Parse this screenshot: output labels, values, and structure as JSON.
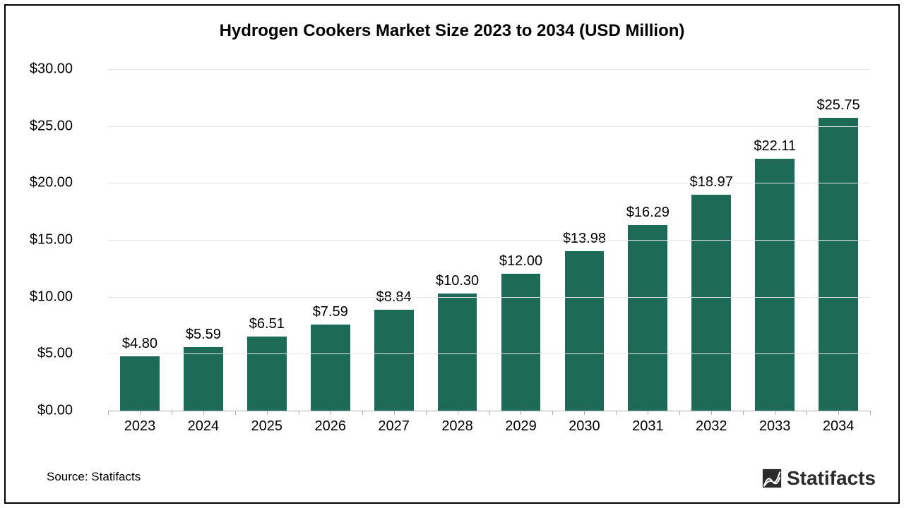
{
  "chart": {
    "type": "bar",
    "title": "Hydrogen Cookers Market Size 2023 to 2034 (USD Million)",
    "title_fontsize": 24,
    "title_fontweight": "bold",
    "background_color": "#ffffff",
    "border_color": "#000000",
    "bar_color": "#1d6b57",
    "grid_color": "#e6e6e6",
    "axis_color": "#b0b0b0",
    "text_color": "#000000",
    "label_fontsize": 20,
    "tick_fontsize": 20,
    "bar_width_pct": 62,
    "ylim": [
      0,
      30
    ],
    "ytick_step": 5,
    "y_ticks": [
      "$0.00",
      "$5.00",
      "$10.00",
      "$15.00",
      "$20.00",
      "$25.00",
      "$30.00"
    ],
    "categories": [
      "2023",
      "2024",
      "2025",
      "2026",
      "2027",
      "2028",
      "2029",
      "2030",
      "2031",
      "2032",
      "2033",
      "2034"
    ],
    "values": [
      4.8,
      5.59,
      6.51,
      7.59,
      8.84,
      10.3,
      12.0,
      13.98,
      16.29,
      18.97,
      22.11,
      25.75
    ],
    "value_labels": [
      "$4.80",
      "$5.59",
      "$6.51",
      "$7.59",
      "$8.84",
      "$10.30",
      "$12.00",
      "$13.98",
      "$16.29",
      "$18.97",
      "$22.11",
      "$25.75"
    ]
  },
  "source": {
    "text": "Source: Statifacts",
    "fontsize": 17
  },
  "brand": {
    "name": "Statifacts",
    "fontsize": 28,
    "icon_color": "#2b2b2b",
    "text_color": "#2b2b2b"
  }
}
